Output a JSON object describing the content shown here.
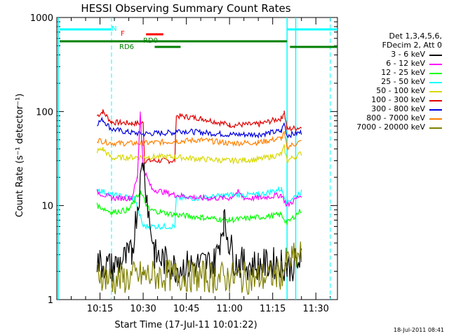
{
  "chart_data": {
    "type": "line",
    "title": "HESSI Observing Summary Count Rates",
    "xlabel": "Start Time (17-Jul-11 10:01:22)",
    "ylabel": "Count Rate (s⁻¹ detector⁻¹)",
    "yscale": "log",
    "ylim": [
      1,
      1000
    ],
    "xlim_minutes": [
      10.0,
      11.625
    ],
    "xticks": [
      "10:15",
      "10:30",
      "10:45",
      "11:00",
      "11:15",
      "11:30"
    ],
    "yticks": [
      "1",
      "10",
      "100",
      "1000"
    ],
    "timestamp": "18-Jul-2011 08:41",
    "legend_header": [
      "Det 1,3,4,5,6,",
      "FDecim 2, Att 0"
    ],
    "legend_entries": [
      {
        "label": "3 - 6 keV",
        "color": "#000000"
      },
      {
        "label": "6 - 12 keV",
        "color": "#ff00ff"
      },
      {
        "label": "12 - 25 keV",
        "color": "#00ff00"
      },
      {
        "label": "25 - 50 keV",
        "color": "#00ffff"
      },
      {
        "label": "50 - 100 keV",
        "color": "#d8d800"
      },
      {
        "label": "100 - 300 keV",
        "color": "#e00000"
      },
      {
        "label": "300 - 800 keV",
        "color": "#0000e0"
      },
      {
        "label": "800 - 7000 keV",
        "color": "#ff8000"
      },
      {
        "label": "7000 - 20000 keV",
        "color": "#808000"
      }
    ],
    "flags": [
      {
        "label": "N",
        "color": "#00ffff",
        "segments": [
          [
            "10:01",
            "10:19"
          ],
          [
            "11:20",
            "11:38"
          ]
        ]
      },
      {
        "label": "F",
        "color": "#ff0000",
        "segments": [
          [
            "10:31",
            "10:37"
          ]
        ]
      },
      {
        "label": "RD0",
        "color": "#008000",
        "segments": [
          [
            "10:01",
            "11:20"
          ]
        ]
      },
      {
        "label": "RD6",
        "color": "#008000",
        "segments": [
          [
            "10:34",
            "10:43"
          ],
          [
            "11:21",
            "11:38"
          ]
        ]
      }
    ],
    "night_boundaries": [
      "10:19",
      "11:20"
    ],
    "series": [
      {
        "name": "100 - 300 keV",
        "color": "#e00000",
        "points": [
          [
            "10:14",
            90
          ],
          [
            "10:16",
            100
          ],
          [
            "10:19",
            77
          ],
          [
            "10:26",
            75
          ],
          [
            "10:30",
            75
          ],
          [
            "10:30.5",
            30
          ],
          [
            "10:41",
            30
          ],
          [
            "10:41.5",
            90
          ],
          [
            "10:50",
            85
          ],
          [
            "11:00",
            72
          ],
          [
            "11:10",
            73
          ],
          [
            "11:18",
            85
          ],
          [
            "11:19",
            100
          ],
          [
            "11:20",
            65
          ],
          [
            "11:25",
            68
          ]
        ]
      },
      {
        "name": "300 - 800 keV",
        "color": "#0000e0",
        "points": [
          [
            "10:14",
            75
          ],
          [
            "10:16",
            82
          ],
          [
            "10:19",
            65
          ],
          [
            "10:25",
            60
          ],
          [
            "10:30",
            58
          ],
          [
            "10:41",
            60
          ],
          [
            "10:41.5",
            63
          ],
          [
            "10:50",
            60
          ],
          [
            "11:00",
            57
          ],
          [
            "11:10",
            57
          ],
          [
            "11:18",
            62
          ],
          [
            "11:19",
            75
          ],
          [
            "11:20",
            56
          ],
          [
            "11:25",
            60
          ]
        ]
      },
      {
        "name": "800 - 7000 keV",
        "color": "#ff8000",
        "points": [
          [
            "10:14",
            50
          ],
          [
            "10:19",
            46
          ],
          [
            "10:30",
            46
          ],
          [
            "10:40",
            48
          ],
          [
            "10:50",
            50
          ],
          [
            "11:00",
            46
          ],
          [
            "11:10",
            47
          ],
          [
            "11:18",
            52
          ],
          [
            "11:19",
            58
          ],
          [
            "11:20",
            42
          ],
          [
            "11:25",
            48
          ]
        ]
      },
      {
        "name": "50 - 100 keV",
        "color": "#d8d800",
        "points": [
          [
            "10:14",
            38
          ],
          [
            "10:16",
            40
          ],
          [
            "10:19",
            32
          ],
          [
            "10:30",
            33
          ],
          [
            "10:41",
            33
          ],
          [
            "10:45",
            32
          ],
          [
            "11:00",
            30
          ],
          [
            "11:10",
            31
          ],
          [
            "11:18",
            35
          ],
          [
            "11:19",
            42
          ],
          [
            "11:20",
            30
          ],
          [
            "11:25",
            36
          ]
        ]
      },
      {
        "name": "25 - 50 keV",
        "color": "#00ffff",
        "points": [
          [
            "10:14",
            15
          ],
          [
            "10:19",
            13
          ],
          [
            "10:27",
            12
          ],
          [
            "10:30",
            6
          ],
          [
            "10:41",
            6
          ],
          [
            "10:41.5",
            12
          ],
          [
            "10:50",
            12
          ],
          [
            "11:00",
            13
          ],
          [
            "11:10",
            13
          ],
          [
            "11:18",
            15
          ],
          [
            "11:20",
            11
          ],
          [
            "11:25",
            14
          ]
        ]
      },
      {
        "name": "6 - 12 keV",
        "color": "#ff00ff",
        "points": [
          [
            "10:14",
            14
          ],
          [
            "10:19",
            12
          ],
          [
            "10:26",
            12
          ],
          [
            "10:28",
            20
          ],
          [
            "10:29",
            100
          ],
          [
            "10:30",
            25
          ],
          [
            "10:33",
            15
          ],
          [
            "10:41",
            13
          ],
          [
            "10:50",
            12
          ],
          [
            "11:00",
            12
          ],
          [
            "11:03",
            14
          ],
          [
            "11:05",
            12
          ],
          [
            "11:10",
            12
          ],
          [
            "11:18",
            13
          ],
          [
            "11:20",
            10
          ],
          [
            "11:25",
            13
          ]
        ]
      },
      {
        "name": "12 - 25 keV",
        "color": "#00ff00",
        "points": [
          [
            "10:14",
            10
          ],
          [
            "10:19",
            8.5
          ],
          [
            "10:25",
            9
          ],
          [
            "10:29",
            14
          ],
          [
            "10:32",
            9
          ],
          [
            "10:41",
            8
          ],
          [
            "10:50",
            7.5
          ],
          [
            "11:00",
            7
          ],
          [
            "11:10",
            7.5
          ],
          [
            "11:18",
            8
          ],
          [
            "11:20",
            6.5
          ],
          [
            "11:25",
            9
          ]
        ]
      },
      {
        "name": "3 - 6 keV",
        "color": "#000000",
        "points": [
          [
            "10:14",
            2.5
          ],
          [
            "10:19",
            2.2
          ],
          [
            "10:26",
            3
          ],
          [
            "10:28",
            10
          ],
          [
            "10:30",
            30
          ],
          [
            "10:32",
            8
          ],
          [
            "10:34",
            3
          ],
          [
            "10:41",
            2.2
          ],
          [
            "10:55",
            2.5
          ],
          [
            "10:58",
            7
          ],
          [
            "11:00",
            4
          ],
          [
            "11:02",
            2.5
          ],
          [
            "11:10",
            2.3
          ],
          [
            "11:18",
            2.5
          ],
          [
            "11:20",
            2.2
          ],
          [
            "11:25",
            2.5
          ]
        ]
      },
      {
        "name": "7000 - 20000 keV",
        "color": "#808000",
        "points": [
          [
            "10:14",
            2
          ],
          [
            "10:19",
            1.6
          ],
          [
            "10:30",
            1.8
          ],
          [
            "10:41",
            1.8
          ],
          [
            "11:00",
            1.7
          ],
          [
            "11:10",
            1.7
          ],
          [
            "11:18",
            1.9
          ],
          [
            "11:20",
            2.5
          ],
          [
            "11:25",
            3
          ]
        ]
      }
    ]
  }
}
